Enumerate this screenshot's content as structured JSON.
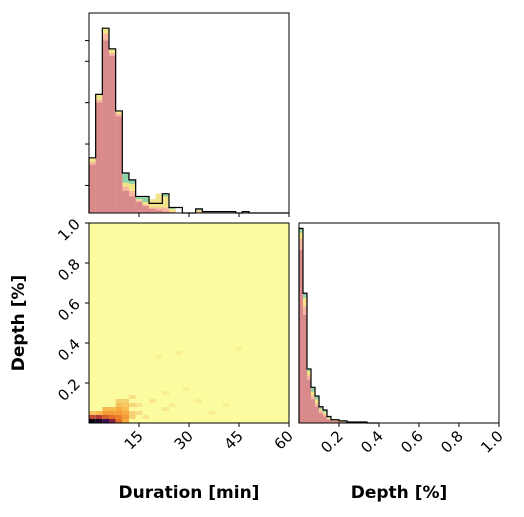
{
  "chart_data": [
    {
      "type": "histogram",
      "panel": "top-left",
      "variable": "Duration [min]",
      "xlim": [
        0,
        60
      ],
      "bin_width": 2,
      "series": [
        {
          "color": "#8fd3a8",
          "values": [
            40,
            86,
            134,
            119,
            74,
            29,
            24,
            12,
            12,
            7,
            7,
            14,
            4,
            0,
            0,
            0,
            3,
            0,
            0,
            0,
            0,
            0,
            0,
            0,
            0,
            0,
            0,
            0,
            0,
            0
          ]
        },
        {
          "color": "#f3e48a",
          "values": [
            40,
            86,
            134,
            119,
            74,
            22,
            21,
            10,
            8,
            10,
            14,
            12,
            3,
            0,
            0,
            0,
            2,
            0,
            0,
            0,
            0,
            0,
            0,
            0,
            0,
            0,
            0,
            0,
            0,
            0
          ]
        },
        {
          "color": "#f7b7a0",
          "values": [
            37,
            82,
            130,
            116,
            72,
            19,
            16,
            9,
            6,
            4,
            4,
            4,
            1,
            0,
            0,
            0,
            1,
            0,
            0,
            0,
            0,
            0,
            0,
            0,
            0,
            0,
            0,
            0,
            0,
            0
          ]
        },
        {
          "color": "#d98a8a",
          "values": [
            35,
            80,
            125,
            114,
            70,
            16,
            12,
            8,
            5,
            3,
            2,
            1,
            0,
            0,
            0,
            0,
            0,
            0,
            0,
            0,
            0,
            0,
            0,
            0,
            0,
            0,
            0,
            0,
            0,
            0
          ]
        }
      ],
      "outline": [
        40,
        86,
        134,
        119,
        74,
        29,
        24,
        12,
        12,
        7,
        7,
        14,
        4,
        4,
        0,
        0,
        3,
        1,
        1,
        1,
        1,
        1,
        0,
        1,
        0,
        0,
        0,
        0,
        0,
        0
      ]
    },
    {
      "type": "heatmap",
      "panel": "bottom-left",
      "xlabel": "Duration [min]",
      "ylabel": "Depth [%]",
      "xlim": [
        0,
        60
      ],
      "ylim": [
        0,
        1.0
      ],
      "xticks": [
        "15",
        "30",
        "45",
        "60"
      ],
      "yticks": [
        "0.2",
        "0.4",
        "0.6",
        "0.8",
        "1.0"
      ],
      "colormap": "magma-pale",
      "cells": [
        {
          "x": 1,
          "y": 0.01,
          "v": 1.0
        },
        {
          "x": 1,
          "y": 0.03,
          "v": 0.55
        },
        {
          "x": 1,
          "y": 0.05,
          "v": 0.15
        },
        {
          "x": 3,
          "y": 0.01,
          "v": 0.95
        },
        {
          "x": 3,
          "y": 0.03,
          "v": 0.6
        },
        {
          "x": 3,
          "y": 0.05,
          "v": 0.2
        },
        {
          "x": 5,
          "y": 0.01,
          "v": 0.85
        },
        {
          "x": 5,
          "y": 0.03,
          "v": 0.5
        },
        {
          "x": 5,
          "y": 0.05,
          "v": 0.3
        },
        {
          "x": 5,
          "y": 0.07,
          "v": 0.2
        },
        {
          "x": 7,
          "y": 0.01,
          "v": 0.7
        },
        {
          "x": 7,
          "y": 0.03,
          "v": 0.45
        },
        {
          "x": 7,
          "y": 0.05,
          "v": 0.3
        },
        {
          "x": 7,
          "y": 0.07,
          "v": 0.2
        },
        {
          "x": 9,
          "y": 0.01,
          "v": 0.45
        },
        {
          "x": 9,
          "y": 0.03,
          "v": 0.4
        },
        {
          "x": 9,
          "y": 0.05,
          "v": 0.3
        },
        {
          "x": 9,
          "y": 0.07,
          "v": 0.25
        },
        {
          "x": 9,
          "y": 0.09,
          "v": 0.18
        },
        {
          "x": 9,
          "y": 0.11,
          "v": 0.12
        },
        {
          "x": 11,
          "y": 0.01,
          "v": 0.25
        },
        {
          "x": 11,
          "y": 0.03,
          "v": 0.3
        },
        {
          "x": 11,
          "y": 0.05,
          "v": 0.25
        },
        {
          "x": 11,
          "y": 0.07,
          "v": 0.2
        },
        {
          "x": 11,
          "y": 0.09,
          "v": 0.15
        },
        {
          "x": 11,
          "y": 0.11,
          "v": 0.12
        },
        {
          "x": 13,
          "y": 0.03,
          "v": 0.12
        },
        {
          "x": 13,
          "y": 0.05,
          "v": 0.12
        },
        {
          "x": 13,
          "y": 0.09,
          "v": 0.1
        },
        {
          "x": 13,
          "y": 0.13,
          "v": 0.08
        },
        {
          "x": 15,
          "y": 0.05,
          "v": 0.08
        },
        {
          "x": 15,
          "y": 0.09,
          "v": 0.06
        },
        {
          "x": 19,
          "y": 0.11,
          "v": 0.05
        },
        {
          "x": 23,
          "y": 0.07,
          "v": 0.05
        },
        {
          "x": 23,
          "y": 0.15,
          "v": 0.04
        },
        {
          "x": 25,
          "y": 0.09,
          "v": 0.04
        },
        {
          "x": 33,
          "y": 0.11,
          "v": 0.04
        },
        {
          "x": 21,
          "y": 0.33,
          "v": 0.03
        },
        {
          "x": 27,
          "y": 0.35,
          "v": 0.03
        },
        {
          "x": 45,
          "y": 0.37,
          "v": 0.03
        },
        {
          "x": 41,
          "y": 0.09,
          "v": 0.03
        },
        {
          "x": 37,
          "y": 0.05,
          "v": 0.04
        },
        {
          "x": 17,
          "y": 0.03,
          "v": 0.05
        },
        {
          "x": 29,
          "y": 0.17,
          "v": 0.03
        }
      ]
    },
    {
      "type": "histogram",
      "panel": "bottom-right",
      "xlabel": "Depth [%]",
      "xlim": [
        0,
        1.0
      ],
      "xticks": [
        "0.2",
        "0.4",
        "0.6",
        "0.8",
        "1.0"
      ],
      "bin_width": 0.02,
      "series": [
        {
          "color": "#8fd3a8",
          "values": [
            180,
            120,
            50,
            33,
            25,
            15,
            12,
            6,
            3,
            3,
            2,
            2,
            1,
            1,
            1,
            1,
            1,
            0,
            0,
            0
          ]
        },
        {
          "color": "#f3e48a",
          "values": [
            176,
            116,
            48,
            29,
            22,
            13,
            10,
            5,
            3,
            3,
            2,
            1,
            1,
            1,
            0,
            1,
            0,
            0,
            0,
            0
          ]
        },
        {
          "color": "#f7b7a0",
          "values": [
            170,
            108,
            44,
            25,
            18,
            11,
            8,
            4,
            2,
            2,
            1,
            1,
            0,
            0,
            0,
            0,
            0,
            0,
            0,
            0
          ]
        },
        {
          "color": "#d98a8a",
          "values": [
            160,
            100,
            40,
            22,
            15,
            9,
            6,
            3,
            2,
            2,
            1,
            1,
            0,
            0,
            0,
            0,
            0,
            0,
            0,
            0
          ]
        }
      ],
      "outline": [
        180,
        120,
        50,
        33,
        25,
        15,
        12,
        6,
        3,
        3,
        2,
        2,
        1,
        1,
        1,
        1,
        1,
        0,
        0,
        0
      ]
    }
  ]
}
